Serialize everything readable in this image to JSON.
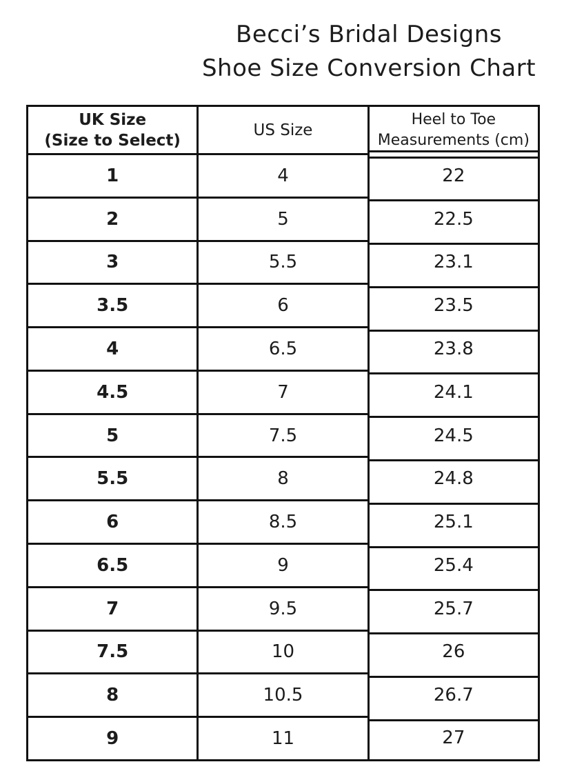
{
  "title": {
    "line1": "Becci’s Bridal Designs",
    "line2": "Shoe Size Conversion Chart"
  },
  "table": {
    "headers": [
      {
        "line1": "UK Size",
        "line2": "(Size to Select)"
      },
      {
        "line1": "US Size",
        "line2": ""
      },
      {
        "line1": "Heel to Toe",
        "line2": "Measurements (cm)"
      }
    ],
    "rows": [
      [
        "1",
        "4",
        "22"
      ],
      [
        "2",
        "5",
        "22.5"
      ],
      [
        "3",
        "5.5",
        "23.1"
      ],
      [
        "3.5",
        "6",
        "23.5"
      ],
      [
        "4",
        "6.5",
        "23.8"
      ],
      [
        "4.5",
        "7",
        "24.1"
      ],
      [
        "5",
        "7.5",
        "24.5"
      ],
      [
        "5.5",
        "8",
        "24.8"
      ],
      [
        "6",
        "8.5",
        "25.1"
      ],
      [
        "6.5",
        "9",
        "25.4"
      ],
      [
        "7",
        "9.5",
        "25.7"
      ],
      [
        "7.5",
        "10",
        "26"
      ],
      [
        "8",
        "10.5",
        "26.7"
      ],
      [
        "9",
        "11",
        "27"
      ]
    ]
  },
  "colors": {
    "text": "#1c1c1c",
    "border": "#111111",
    "background": "#ffffff"
  }
}
